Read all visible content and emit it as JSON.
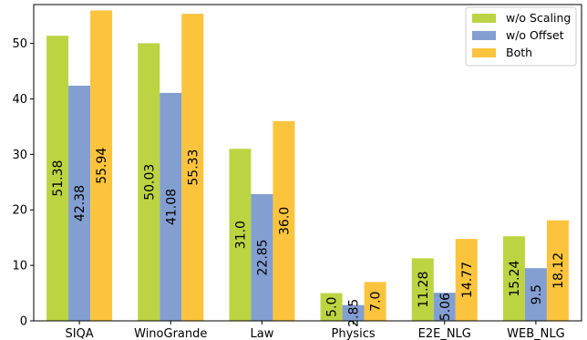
{
  "chart_data": {
    "type": "bar",
    "categories": [
      "SIQA",
      "WinoGrande",
      "Law",
      "Physics",
      "E2E_NLG",
      "WEB_NLG"
    ],
    "series": [
      {
        "name": "w/o Scaling",
        "color": "#bcd442",
        "values": [
          51.38,
          50.03,
          31.0,
          5.0,
          11.28,
          15.24
        ],
        "labels": [
          "51.38",
          "50.03",
          "31.0",
          "5.0",
          "11.28",
          "15.24"
        ]
      },
      {
        "name": "w/o Offset",
        "color": "#839fd2",
        "values": [
          42.38,
          41.08,
          22.85,
          2.85,
          5.06,
          9.5
        ],
        "labels": [
          "42.38",
          "41.08",
          "22.85",
          "2.85",
          "5.06",
          "9.5"
        ]
      },
      {
        "name": "Both",
        "color": "#fbc43c",
        "values": [
          55.94,
          55.33,
          36.0,
          7.0,
          14.77,
          18.12
        ],
        "labels": [
          "55.94",
          "55.33",
          "36.0",
          "7.0",
          "14.77",
          "18.12"
        ]
      }
    ],
    "yticks": [
      "0",
      "10",
      "20",
      "30",
      "40",
      "50"
    ],
    "ylim": [
      0,
      57
    ],
    "grid": false,
    "legend_position": "top-right",
    "title": "",
    "xlabel": "",
    "ylabel": ""
  }
}
